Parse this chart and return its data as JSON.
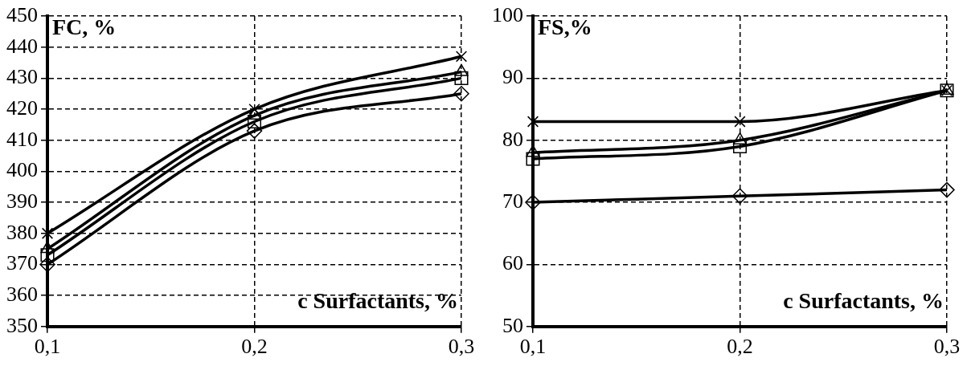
{
  "chart_data": [
    {
      "type": "line",
      "ylabel": "FC, %",
      "xlabel": "c Surfactants, %",
      "categories": [
        "0,1",
        "0,2",
        "0,3"
      ],
      "ylim": [
        350,
        450
      ],
      "yticks": [
        350,
        360,
        370,
        380,
        390,
        400,
        410,
        420,
        430,
        440,
        450
      ],
      "grid": true,
      "legend": false,
      "line_style": "solid",
      "series": [
        {
          "color": "#000000",
          "marker": "diamond",
          "values": [
            370,
            413,
            425
          ]
        },
        {
          "color": "#000000",
          "marker": "square",
          "values": [
            373,
            416,
            430
          ]
        },
        {
          "color": "#000000",
          "marker": "triangle",
          "values": [
            375,
            418,
            432
          ]
        },
        {
          "color": "#000000",
          "marker": "cross",
          "values": [
            380,
            420,
            437
          ]
        }
      ]
    },
    {
      "type": "line",
      "ylabel": "FS,%",
      "xlabel": "c Surfactants, %",
      "categories": [
        "0,1",
        "0,2",
        "0,3"
      ],
      "ylim": [
        50,
        100
      ],
      "yticks": [
        50,
        60,
        70,
        80,
        90,
        100
      ],
      "grid": true,
      "legend": false,
      "line_style": "solid",
      "series": [
        {
          "color": "#000000",
          "marker": "diamond",
          "values": [
            70,
            71,
            72
          ]
        },
        {
          "color": "#000000",
          "marker": "square",
          "values": [
            77,
            79,
            88
          ]
        },
        {
          "color": "#000000",
          "marker": "triangle",
          "values": [
            78,
            80,
            88
          ]
        },
        {
          "color": "#000000",
          "marker": "cross",
          "values": [
            83,
            83,
            88
          ]
        }
      ]
    }
  ]
}
